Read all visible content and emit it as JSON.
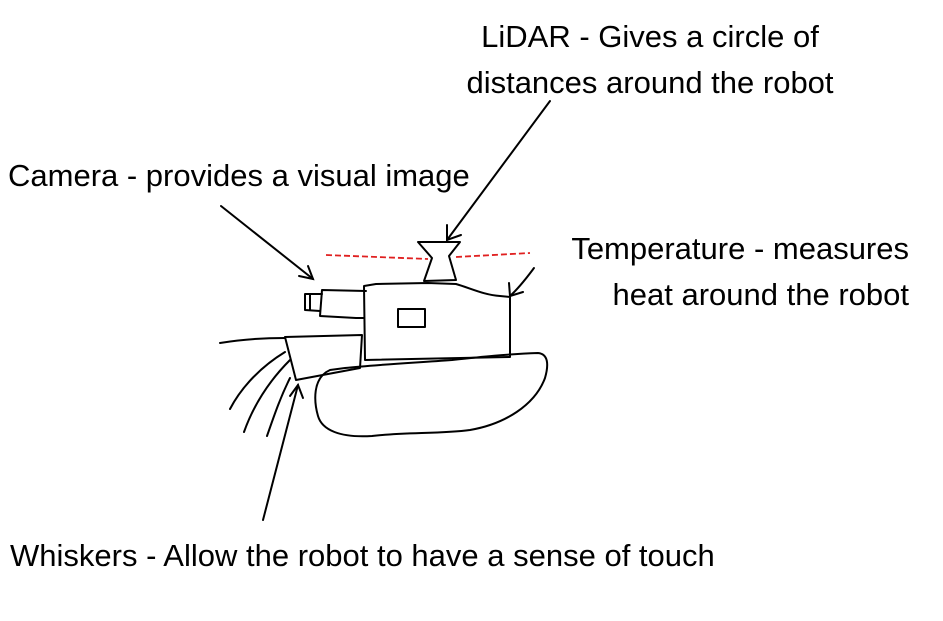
{
  "labels": {
    "lidar": {
      "line1": "LiDAR - Gives a circle of",
      "line2": "distances around the robot"
    },
    "camera": "Camera - provides a visual image",
    "temperature": {
      "line1": "Temperature - measures",
      "line2": "heat around the robot"
    },
    "whiskers": "Whiskers - Allow the robot to have a sense of touch"
  },
  "colors": {
    "text": "#000000",
    "line": "#000000",
    "lidar_beam": "#e02020",
    "background": "#ffffff"
  }
}
